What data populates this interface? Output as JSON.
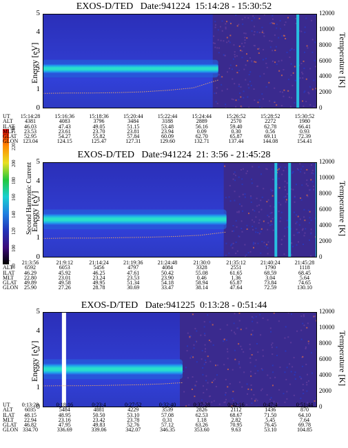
{
  "colorbar": {
    "label": "Second Harmonic Current",
    "ticks": [
      "80",
      "100",
      "120",
      "140",
      "160",
      "180",
      "200",
      "220",
      "240"
    ],
    "colors": [
      "#000000",
      "#3c0c7a",
      "#2233b8",
      "#1f7fe0",
      "#19d0d0",
      "#23c83c",
      "#e8e020",
      "#ff8a00",
      "#e00000"
    ]
  },
  "chart_data": [
    {
      "type": "heatmap",
      "title": "EXOS-D/TED   Date:941224  15:14:28 - 15:30:52",
      "ylabel": "Energy [eV]",
      "y2label": "Temperature [K]",
      "ylim": [
        0,
        5
      ],
      "y2lim": [
        0,
        12000
      ],
      "yticks": [
        "0",
        "1",
        "2",
        "3",
        "4",
        "5"
      ],
      "y2ticks": [
        "0",
        "2000",
        "4000",
        "6000",
        "8000",
        "10000",
        "12000"
      ],
      "band": {
        "center_ev": 2.1,
        "width_ev": 0.5,
        "end_fraction": 0.64
      },
      "noise_start_fraction": 0.62,
      "spikes": [
        0.93
      ],
      "gaps": [],
      "temperature_curve_k": [
        1900,
        1950,
        1950,
        2000,
        2100,
        2300,
        2600,
        3600
      ],
      "table": {
        "row_labels": [
          "UT",
          "ALT",
          "ILAT",
          "MLT",
          "GLAT",
          "GLON"
        ],
        "columns": [
          [
            "15:14:28",
            "4381",
            "46.03",
            "23.53",
            "52.95",
            "123.04"
          ],
          [
            "15:16:36",
            "4083",
            "47.43",
            "23.61",
            "54.27",
            "124.15"
          ],
          [
            "15:18:36",
            "3796",
            "49.05",
            "23.70",
            "55.82",
            "125.47"
          ],
          [
            "15:20:44",
            "3484",
            "51.15",
            "23.81",
            "57.84",
            "127.31"
          ],
          [
            "15:22:44",
            "3188",
            "53.48",
            "23.94",
            "60.09",
            "129.60"
          ],
          [
            "15:24:44",
            "2889",
            "56.16",
            "0.09",
            "62.70",
            "132.71"
          ],
          [
            "15:26:52",
            "2570",
            "59.40",
            "0.30",
            "65.87",
            "137.44"
          ],
          [
            "15:28:52",
            "2272",
            "62.78",
            "0.56",
            "69.11",
            "144.08"
          ],
          [
            "15:30:52",
            "1980",
            "66.41",
            "0.93",
            "72.39",
            "154.41"
          ]
        ]
      }
    },
    {
      "type": "heatmap",
      "title": "EXOS-D/TED   Date:941224  21: 3:56 - 21:45:28",
      "ylabel": "Energy [eV]",
      "y2label": "Temperature [K]",
      "ylim": [
        0,
        5
      ],
      "y2lim": [
        0,
        12000
      ],
      "yticks": [
        "0",
        "1",
        "2",
        "3",
        "4",
        "5"
      ],
      "y2ticks": [
        "0",
        "2000",
        "4000",
        "6000",
        "8000",
        "10000",
        "12000"
      ],
      "band": {
        "center_ev": 2.0,
        "width_ev": 0.6,
        "end_fraction": 0.67
      },
      "noise_start_fraction": 0.66,
      "spikes": [
        0.85,
        0.9,
        1.0
      ],
      "gaps": [],
      "temperature_curve_k": [
        2400,
        2450,
        2450,
        2500,
        2550,
        2650,
        2800,
        3200
      ],
      "table": {
        "row_labels": [
          "UT",
          "ALT",
          "ILAT",
          "MLT",
          "GLAT",
          "GLON"
        ],
        "columns": [
          [
            "21:3:56",
            "6592",
            "46.29",
            "22.80",
            "49.89",
            "25.90"
          ],
          [
            "21:9:12",
            "6053",
            "45.92",
            "23.01",
            "49.58",
            "27.26"
          ],
          [
            "21:14:24",
            "5456",
            "46.25",
            "23.24",
            "49.95",
            "28.78"
          ],
          [
            "21:19:36",
            "4797",
            "47.61",
            "23.53",
            "51.34",
            "30.69"
          ],
          [
            "21:24:48",
            "4084",
            "50.42",
            "23.90",
            "54.18",
            "33.47"
          ],
          [
            "21:30:0",
            "3328",
            "55.08",
            "0.46",
            "58.94",
            "38.14"
          ],
          [
            "21:35:12",
            "2551",
            "61.65",
            "1.36",
            "65.87",
            "47.64"
          ],
          [
            "21:40:24",
            "1790",
            "68.59",
            "3.04",
            "73.84",
            "72.59"
          ],
          [
            "21:45:28",
            "1118",
            "68.45",
            "5.64",
            "74.65",
            "130.10"
          ]
        ]
      }
    },
    {
      "type": "heatmap",
      "title": "EXOS-D/TED   Date:941225  0:13:28 - 0:51:44",
      "ylabel": "Energy [eV]",
      "y2label": "Temperature [K]",
      "ylim": [
        0,
        5
      ],
      "y2lim": [
        0,
        12000
      ],
      "yticks": [
        "0",
        "1",
        "2",
        "3",
        "4",
        "5"
      ],
      "y2ticks": [
        "0",
        "2000",
        "4000",
        "6000",
        "8000",
        "10000",
        "12000"
      ],
      "band": {
        "center_ev": 2.0,
        "width_ev": 0.6,
        "end_fraction": 0.51
      },
      "noise_start_fraction": 0.5,
      "spikes": [],
      "gaps": [
        0.07
      ],
      "temperature_curve_k": [
        2700,
        2720,
        2720,
        2750,
        2800,
        2850,
        2950,
        3100
      ],
      "table": {
        "row_labels": [
          "UT",
          "ALT",
          "ILAT",
          "MLT",
          "GLAT",
          "GLON"
        ],
        "columns": [
          [
            "0:13:28",
            "6035",
            "48.15",
            "22.94",
            "46.82",
            "334.70"
          ],
          [
            "0:18:16",
            "5484",
            "48.95",
            "23.16",
            "47.95",
            "336.69"
          ],
          [
            "0:23:4",
            "4881",
            "50.50",
            "23.42",
            "49.83",
            "339.06"
          ],
          [
            "0:27:52",
            "4229",
            "53.10",
            "23.78",
            "52.76",
            "342.07"
          ],
          [
            "0:32:40",
            "3539",
            "57.08",
            "0.31",
            "57.12",
            "346.35"
          ],
          [
            "0:37:28",
            "2826",
            "62.53",
            "1.18",
            "63.26",
            "353.60"
          ],
          [
            "0:42:16",
            "2112",
            "68.67",
            "2.82",
            "70.95",
            "9.63"
          ],
          [
            "0:47:4",
            "1436",
            "71.50",
            "5.45",
            "76.45",
            "53.10"
          ],
          [
            "0:51:44",
            "870",
            "64.10",
            "7.64",
            "69.78",
            "104.85"
          ]
        ]
      }
    }
  ]
}
